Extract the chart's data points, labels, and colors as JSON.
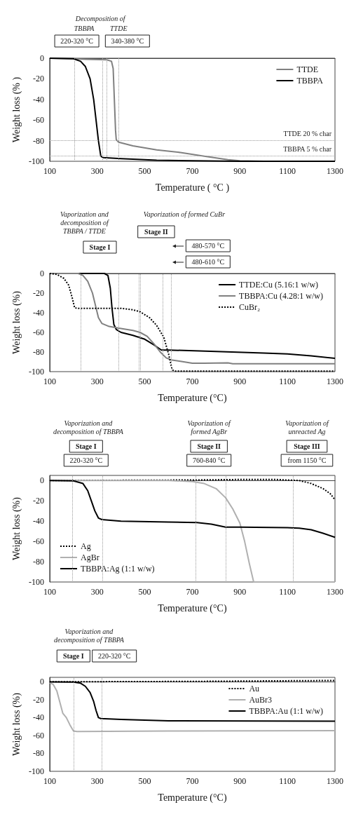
{
  "chart_data": [
    {
      "type": "line",
      "xlabel": "Temperature ( °C )",
      "ylabel": "Weight loss (% )",
      "xlim": [
        100,
        1300
      ],
      "xticks": [
        100,
        300,
        500,
        700,
        900,
        1100,
        1300
      ],
      "ylim": [
        -100,
        0
      ],
      "yticks": [
        -100,
        -80,
        -60,
        -40,
        -20,
        0
      ],
      "legend": "top right",
      "series": [
        {
          "name": "TTDE",
          "color": "#808080",
          "x": [
            100,
            200,
            250,
            340,
            360,
            367,
            372,
            377,
            380,
            390,
            450,
            550,
            650,
            750,
            850,
            900,
            1000,
            1300
          ],
          "values": [
            0,
            -0.5,
            -1,
            -1.5,
            -3,
            -10,
            -40,
            -70,
            -79,
            -81.5,
            -85,
            -89,
            -91.5,
            -95,
            -98.5,
            -99.5,
            -100,
            -100
          ]
        },
        {
          "name": "TBBPA",
          "color": "#000000",
          "x": [
            100,
            200,
            230,
            250,
            270,
            285,
            295,
            305,
            315,
            325,
            400,
            550,
            700,
            900,
            1300
          ],
          "values": [
            0,
            -0.5,
            -3,
            -8,
            -20,
            -40,
            -60,
            -80,
            -95,
            -96.5,
            -97.5,
            -99,
            -99.5,
            -100,
            -100
          ]
        }
      ],
      "ref_lines": [
        {
          "axis": "x",
          "value": 205,
          "line_style": "dotted"
        },
        {
          "axis": "x",
          "value": 322,
          "line_style": "dotted"
        },
        {
          "axis": "x",
          "value": 340,
          "line_style": "dotted"
        },
        {
          "axis": "x",
          "value": 390,
          "line_style": "dotted"
        },
        {
          "axis": "y",
          "value": -80,
          "label": "TTDE 20 % char",
          "line_style": "dotted"
        },
        {
          "axis": "y",
          "value": -95,
          "label": "TBBPA 5 % char",
          "line_style": "dotted"
        }
      ],
      "annotations": [
        "Decomposition of",
        "TBBPA",
        "TTDE",
        "220-320 °C",
        "340-380 °C"
      ]
    },
    {
      "type": "line",
      "xlabel": "Temperature (°C)",
      "ylabel": "Weight loss (%)",
      "xlim": [
        100,
        1300
      ],
      "xticks": [
        100,
        300,
        500,
        700,
        900,
        1100,
        1300
      ],
      "ylim": [
        -100,
        0
      ],
      "yticks": [
        -100,
        -80,
        -60,
        -40,
        -20,
        0
      ],
      "legend": "top right",
      "series": [
        {
          "name": "TTDE:Cu (5.16:1 w/w)",
          "color": "#000000",
          "x": [
            100,
            330,
            345,
            355,
            362,
            370,
            380,
            400,
            450,
            500,
            540,
            570,
            600,
            800,
            1000,
            1100,
            1200,
            1300
          ],
          "values": [
            0,
            0,
            -2,
            -15,
            -35,
            -52,
            -57,
            -60,
            -63,
            -67,
            -73,
            -78,
            -78,
            -79.5,
            -81,
            -82,
            -84,
            -86.5
          ]
        },
        {
          "name": "TBBPA:Cu (4.28:1 w/w)",
          "color": "#808080",
          "x": [
            100,
            220,
            240,
            260,
            280,
            295,
            305,
            320,
            350,
            400,
            450,
            480,
            510,
            540,
            565,
            590,
            610,
            650,
            700,
            750,
            850,
            870,
            1000,
            1300
          ],
          "values": [
            0,
            0,
            -2,
            -8,
            -20,
            -35,
            -45,
            -51,
            -54,
            -56,
            -58,
            -60,
            -64,
            -72,
            -80,
            -86,
            -88,
            -89.5,
            -91.5,
            -91.5,
            -91,
            -92,
            -92,
            -92
          ]
        },
        {
          "name": "CuBr₂",
          "color": "#000000",
          "line_style": "dotted",
          "x": [
            100,
            130,
            160,
            180,
            195,
            205,
            220,
            400,
            450,
            480,
            520,
            550,
            580,
            600,
            615,
            625,
            1300
          ],
          "values": [
            0,
            -1,
            -5,
            -12,
            -25,
            -35,
            -35.5,
            -35.5,
            -37,
            -39,
            -45,
            -53,
            -65,
            -82,
            -98,
            -99.5,
            -99.5
          ]
        }
      ],
      "ref_lines": [
        {
          "axis": "x",
          "value": 230,
          "line_style": "dotted"
        },
        {
          "axis": "x",
          "value": 390,
          "line_style": "dotted"
        },
        {
          "axis": "x",
          "value": 475,
          "line_style": "dotted"
        },
        {
          "axis": "x",
          "value": 575,
          "line_style": "dotted"
        },
        {
          "axis": "x",
          "value": 480,
          "line_style": "dotted"
        },
        {
          "axis": "x",
          "value": 610,
          "line_style": "dotted"
        }
      ],
      "annotations": [
        "Vaporization and\ndecomposition of\nTBBPA / TTDE",
        "Vaporization of formed CuBr",
        "Stage I",
        "Stage II",
        "480-570 °C",
        "480-610 °C"
      ]
    },
    {
      "type": "line",
      "xlabel": "Temperature (°C)",
      "ylabel": "Weight loss (%)",
      "xlim": [
        100,
        1300
      ],
      "xticks": [
        100,
        300,
        500,
        700,
        900,
        1100,
        1300
      ],
      "ylim": [
        -100,
        5
      ],
      "yticks": [
        -100,
        -80,
        -60,
        -40,
        -20,
        0
      ],
      "legend": "bottom left",
      "series": [
        {
          "name": "Ag",
          "color": "#000000",
          "line_style": "dotted",
          "x": [
            100,
            700,
            900,
            1050,
            1150,
            1200,
            1250,
            1280,
            1300
          ],
          "values": [
            0,
            0.5,
            1,
            1,
            0,
            -3,
            -8,
            -13,
            -19
          ]
        },
        {
          "name": "AgBr",
          "color": "#b0b0b0",
          "x": [
            100,
            600,
            700,
            750,
            800,
            840,
            870,
            900,
            920,
            940,
            958,
            1300
          ],
          "values": [
            0,
            0,
            -1,
            -3,
            -8,
            -17,
            -28,
            -42,
            -60,
            -82,
            -100,
            -100
          ]
        },
        {
          "name": "TBBPA:Ag (1:1 w/w)",
          "color": "#000000",
          "x": [
            100,
            200,
            240,
            260,
            275,
            290,
            305,
            320,
            400,
            600,
            720,
            780,
            840,
            900,
            1100,
            1150,
            1200,
            1250,
            1300
          ],
          "values": [
            0,
            -0.3,
            -3,
            -10,
            -20,
            -30,
            -37,
            -38.5,
            -40,
            -41,
            -41.5,
            -43,
            -46,
            -46,
            -46.5,
            -47,
            -48.5,
            -52,
            -56
          ]
        }
      ],
      "ref_lines": [
        {
          "axis": "x",
          "value": 195,
          "line_style": "dotted"
        },
        {
          "axis": "x",
          "value": 322,
          "line_style": "dotted"
        },
        {
          "axis": "x",
          "value": 715,
          "line_style": "dotted"
        },
        {
          "axis": "x",
          "value": 840,
          "line_style": "dotted"
        },
        {
          "axis": "x",
          "value": 1125,
          "line_style": "dotted"
        }
      ],
      "annotations": [
        "Vaporization and\ndecomposition of TBBPA",
        "Stage I",
        "220-320 °C",
        "Vaporization of\nformed AgBr",
        "Stage II",
        "760-840 °C",
        "Vaporization of\nunreacted Ag",
        "Stage III",
        "from 1150 °C"
      ]
    },
    {
      "type": "line",
      "xlabel": "Temperature (°C)",
      "ylabel": "Weight loss (%)",
      "xlim": [
        100,
        1300
      ],
      "xticks": [
        100,
        300,
        500,
        700,
        900,
        1100,
        1300
      ],
      "ylim": [
        -100,
        5
      ],
      "yticks": [
        -100,
        -80,
        -60,
        -40,
        -20,
        0
      ],
      "legend": "top right",
      "series": [
        {
          "name": "Au",
          "color": "#000000",
          "line_style": "dotted",
          "x": [
            100,
            700,
            1300
          ],
          "values": [
            0,
            0.5,
            1.5
          ]
        },
        {
          "name": "AuBr3",
          "color": "#b0b0b0",
          "x": [
            100,
            115,
            130,
            145,
            155,
            170,
            185,
            200,
            215,
            600,
            1300
          ],
          "values": [
            -1,
            -3,
            -10,
            -25,
            -35,
            -40,
            -48,
            -55,
            -55.5,
            -55,
            -54.5
          ]
        },
        {
          "name": "TBBPA:Au (1:1 w/w)",
          "color": "#000000",
          "x": [
            100,
            200,
            230,
            250,
            270,
            285,
            295,
            305,
            315,
            400,
            600,
            1300
          ],
          "values": [
            0,
            -0.3,
            -1.5,
            -5,
            -12,
            -22,
            -32,
            -40,
            -41,
            -42,
            -43.5,
            -44
          ]
        }
      ],
      "ref_lines": [
        {
          "axis": "x",
          "value": 200,
          "line_style": "dotted"
        },
        {
          "axis": "x",
          "value": 320,
          "line_style": "dotted"
        }
      ],
      "annotations": [
        "Vaporization and\ndecomposition of TBBPA",
        "Stage I",
        "220-320 °C"
      ]
    }
  ]
}
